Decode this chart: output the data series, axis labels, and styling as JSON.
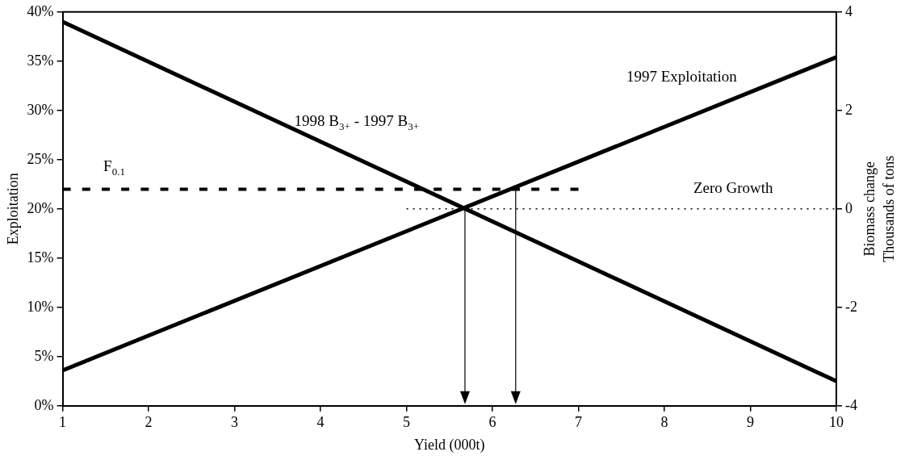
{
  "chart_data": {
    "type": "line",
    "xlabel": "Yield (000t)",
    "ylabel": "Exploitation",
    "y2label": "Biomass change\nThousands of tons",
    "xlim": [
      1,
      10
    ],
    "xticks": [
      1,
      2,
      3,
      4,
      5,
      6,
      7,
      8,
      9,
      10
    ],
    "ylim": [
      0,
      40
    ],
    "yticks": [
      {
        "value": 0,
        "label": "0%"
      },
      {
        "value": 5,
        "label": "5%"
      },
      {
        "value": 10,
        "label": "10%"
      },
      {
        "value": 15,
        "label": "15%"
      },
      {
        "value": 20,
        "label": "20%"
      },
      {
        "value": 25,
        "label": "25%"
      },
      {
        "value": 30,
        "label": "30%"
      },
      {
        "value": 35,
        "label": "35%"
      },
      {
        "value": 40,
        "label": "40%"
      }
    ],
    "y2lim": [
      -4,
      4
    ],
    "y2ticks": [
      -4,
      -2,
      0,
      2,
      4
    ],
    "series": [
      {
        "name": "1997 Exploitation",
        "color": "#000000",
        "x": [
          1,
          10
        ],
        "values": [
          3.6,
          35.4
        ]
      },
      {
        "name": "1998 B$_{3+}$ - 1997 B$_{3+}$",
        "color": "#000000",
        "axis": "y2",
        "x": [
          1,
          10
        ],
        "values": [
          3.8,
          -3.5
        ]
      },
      {
        "name": "F$_{0.1}$",
        "color": "#000000",
        "line_style": "dashed",
        "x": [
          1,
          7
        ],
        "values": [
          22,
          22
        ]
      },
      {
        "name": "Zero Growth",
        "color": "#000000",
        "axis": "y2",
        "line_style": "dotted",
        "x": [
          5,
          10
        ],
        "values": [
          0,
          0
        ]
      }
    ],
    "ref_lines": [
      {
        "axis": "x",
        "value": 5.68
      },
      {
        "axis": "x",
        "value": 6.27
      }
    ],
    "grid": false,
    "legend": false,
    "marker": "none"
  }
}
